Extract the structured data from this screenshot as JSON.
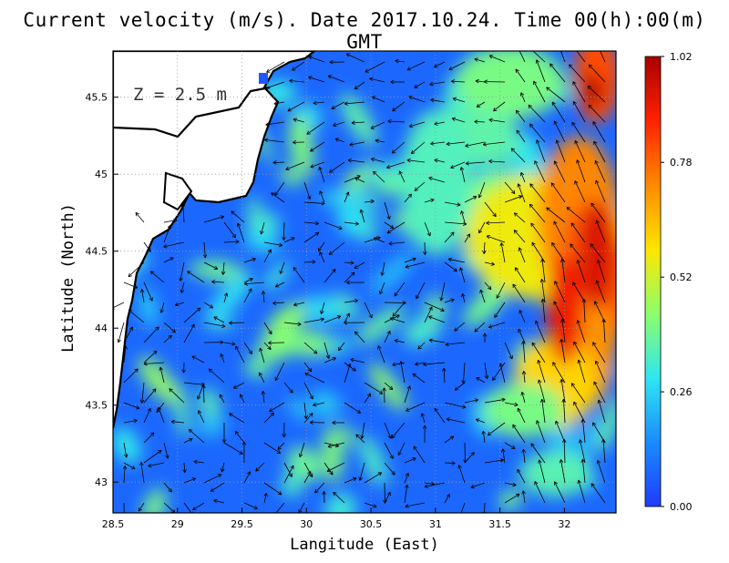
{
  "title": "Current velocity (m/s). Date 2017.10.24. Time 00(h):00(m) GMT",
  "depth_label": "Z = 2.5 m",
  "chart_data": {
    "type": "heatmap",
    "title": "Current velocity (m/s). Date 2017.10.24. Time 00(h):00(m) GMT",
    "xlabel": "Langitude (East)",
    "ylabel": "Latitude (North)",
    "xlim": [
      28.5,
      32.4
    ],
    "ylim": [
      42.8,
      45.8
    ],
    "x_ticks": [
      "28.5",
      "29",
      "29.5",
      "30",
      "30.5",
      "31",
      "31.5",
      "32"
    ],
    "x_tick_values": [
      28.5,
      29,
      29.5,
      30,
      30.5,
      31,
      31.5,
      32
    ],
    "y_ticks": [
      "43",
      "43.5",
      "44",
      "44.5",
      "45",
      "45.5"
    ],
    "y_tick_values": [
      43,
      43.5,
      44,
      44.5,
      45,
      45.5
    ],
    "grid": true,
    "colorbar": {
      "min": 0.0,
      "max": 1.02,
      "tick_labels": [
        "0.00",
        "0.26",
        "0.52",
        "0.78",
        "1.02"
      ],
      "tick_values": [
        0.0,
        0.26,
        0.52,
        0.78,
        1.02
      ],
      "colors": [
        "#1f3bff",
        "#1a8cff",
        "#2ee6f0",
        "#8cff6a",
        "#ffe600",
        "#ff8a00",
        "#ff2200",
        "#a80000"
      ]
    },
    "colors": {
      "land": "#ffffff",
      "coast": "#000000",
      "grid": "#9a9a9a",
      "arrow": "#000000"
    }
  }
}
